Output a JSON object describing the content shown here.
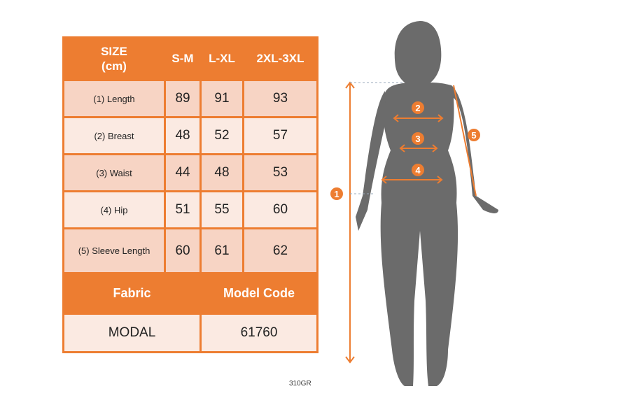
{
  "table": {
    "header": [
      "SIZE\n(cm)",
      "S-M",
      "L-XL",
      "2XL-3XL"
    ],
    "rows": [
      {
        "label": "(1) Length",
        "values": [
          "89",
          "91",
          "93"
        ]
      },
      {
        "label": "(2) Breast",
        "values": [
          "48",
          "52",
          "57"
        ]
      },
      {
        "label": "(3) Waist",
        "values": [
          "44",
          "48",
          "53"
        ]
      },
      {
        "label": "(4) Hip",
        "values": [
          "51",
          "55",
          "60"
        ]
      },
      {
        "label": "(5) Sleeve Length",
        "values": [
          "60",
          "61",
          "62"
        ]
      }
    ],
    "fabric_label": "Fabric",
    "model_code_label": "Model Code",
    "fabric": "MODAL",
    "model_code": "61760"
  },
  "code": "310GR",
  "figure": {
    "markers": [
      "1",
      "2",
      "3",
      "4",
      "5"
    ]
  },
  "colors": {
    "accent": "#ED7D31",
    "silhouette": "#6b6b6b"
  }
}
